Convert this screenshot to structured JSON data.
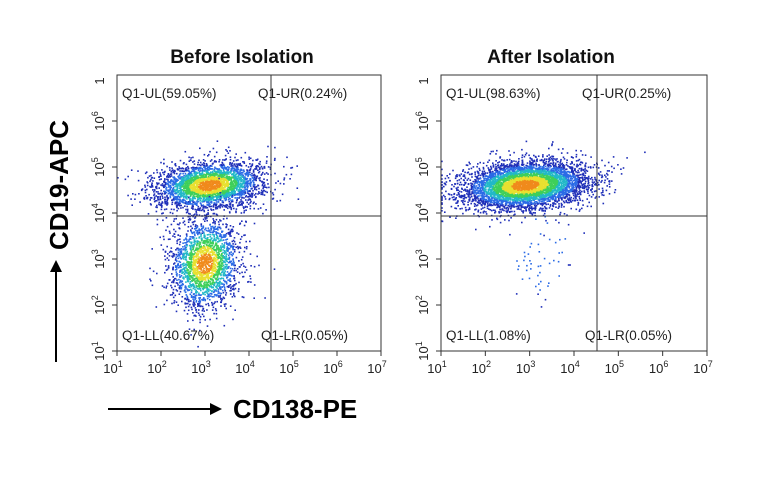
{
  "chart_data": [
    {
      "type": "scatter",
      "title": "Before Isolation",
      "x_scale": "log",
      "y_scale": "log",
      "xlim": [
        10,
        10000000
      ],
      "ylim": [
        10,
        10000000
      ],
      "x_ticks": [
        "1",
        "2",
        "3",
        "4",
        "5",
        "6",
        "7"
      ],
      "y_ticks": [
        "1",
        "2",
        "3",
        "4",
        "5",
        "6"
      ],
      "y_top_tick": "1",
      "gate": {
        "x": 30000,
        "y": 10000
      },
      "quadrants": [
        {
          "label": "Q1-UL(59.05%)",
          "position": "top-left"
        },
        {
          "label": "Q1-UR(0.24%)",
          "position": "top-right"
        },
        {
          "label": "Q1-LL(40.67%)",
          "position": "bottom-left"
        },
        {
          "label": "Q1-LR(0.05%)",
          "position": "bottom-right"
        }
      ],
      "populations": [
        {
          "x_center_log": 3.1,
          "y_center_log": 4.6,
          "x_spread_log": 0.6,
          "y_spread_log": 0.25,
          "fraction": 0.5905
        },
        {
          "x_center_log": 3.0,
          "y_center_log": 2.9,
          "x_spread_log": 0.4,
          "y_spread_log": 0.5,
          "fraction": 0.4067
        }
      ]
    },
    {
      "type": "scatter",
      "title": "After Isolation",
      "x_scale": "log",
      "y_scale": "log",
      "xlim": [
        10,
        10000000
      ],
      "ylim": [
        10,
        10000000
      ],
      "x_ticks": [
        "1",
        "2",
        "3",
        "4",
        "5",
        "6",
        "7"
      ],
      "y_ticks": [
        "1",
        "2",
        "3",
        "4",
        "5",
        "6"
      ],
      "y_top_tick": "1",
      "gate": {
        "x": 30000,
        "y": 10000
      },
      "quadrants": [
        {
          "label": "Q1-UL(98.63%)",
          "position": "top-left"
        },
        {
          "label": "Q1-UR(0.25%)",
          "position": "top-right"
        },
        {
          "label": "Q1-LL(1.08%)",
          "position": "bottom-left"
        },
        {
          "label": "Q1-LR(0.05%)",
          "position": "bottom-right"
        }
      ],
      "populations": [
        {
          "x_center_log": 2.9,
          "y_center_log": 4.6,
          "x_spread_log": 0.7,
          "y_spread_log": 0.25,
          "fraction": 0.9863
        },
        {
          "x_center_log": 3.2,
          "y_center_log": 3.1,
          "x_spread_log": 0.4,
          "y_spread_log": 0.5,
          "fraction": 0.0108
        }
      ]
    }
  ],
  "axes": {
    "xlabel": "CD138-PE",
    "ylabel": "CD19-APC",
    "tick_base": "10"
  },
  "colors": {
    "scale": [
      "#1f2fb8",
      "#2b6be6",
      "#22b8c8",
      "#3fcf5a",
      "#e8e030",
      "#f08a1c"
    ],
    "gate_line": "#333333",
    "frame": "#333333"
  }
}
